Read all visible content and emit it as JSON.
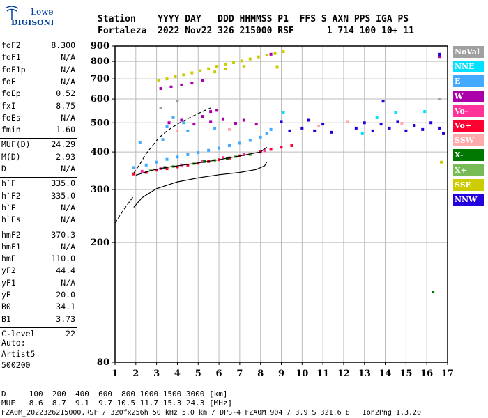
{
  "logo": {
    "line1": "Lowell",
    "line2": "DIGISONDE"
  },
  "header": {
    "row1": "Station    YYYY DAY   DDD HHMMSS P1  FFS S AXN PPS IGA PS",
    "row2": "Fortaleza  2022 Nov22 326 215000 RSF      1 714 100 10+ 11"
  },
  "params": [
    {
      "k": "foF2",
      "v": "8.300"
    },
    {
      "k": "foF1",
      "v": "N/A"
    },
    {
      "k": "foF1p",
      "v": "N/A"
    },
    {
      "k": "foE",
      "v": "N/A"
    },
    {
      "k": "foEp",
      "v": "0.52"
    },
    {
      "k": "fxI",
      "v": "8.75"
    },
    {
      "k": "foEs",
      "v": "N/A"
    },
    {
      "k": "fmin",
      "v": "1.60"
    },
    {
      "k": "MUF(D)",
      "v": "24.29"
    },
    {
      "k": "M(D)",
      "v": "2.93"
    },
    {
      "k": "D",
      "v": "N/A"
    },
    {
      "k": "h`F",
      "v": "335.0"
    },
    {
      "k": "h`F2",
      "v": "335.0"
    },
    {
      "k": "h`E",
      "v": "N/A"
    },
    {
      "k": "h`Es",
      "v": "N/A"
    },
    {
      "k": "hmF2",
      "v": "370.3"
    },
    {
      "k": "hmF1",
      "v": "N/A"
    },
    {
      "k": "hmE",
      "v": "110.0"
    },
    {
      "k": "yF2",
      "v": "44.4"
    },
    {
      "k": "yF1",
      "v": "N/A"
    },
    {
      "k": "yE",
      "v": "20.0"
    },
    {
      "k": "B0",
      "v": "34.1"
    },
    {
      "k": "B1",
      "v": "3.73"
    },
    {
      "k": "C-level",
      "v": "22"
    }
  ],
  "auto": {
    "l1": "Auto:",
    "l2": "Artist5",
    "l3": "500200"
  },
  "legend": [
    {
      "label": "NoVal",
      "color": "#a0a0a0"
    },
    {
      "label": "NNE",
      "color": "#00e0ff"
    },
    {
      "label": "E",
      "color": "#44aaff"
    },
    {
      "label": "W",
      "color": "#aa00aa"
    },
    {
      "label": "Vo-",
      "color": "#ff3399"
    },
    {
      "label": "Vo+",
      "color": "#ff0033"
    },
    {
      "label": "SSW",
      "color": "#ffaaaa"
    },
    {
      "label": "X-",
      "color": "#007700"
    },
    {
      "label": "X+",
      "color": "#77bb55"
    },
    {
      "label": "SSE",
      "color": "#cccc00"
    },
    {
      "label": "NNW",
      "color": "#2200dd"
    }
  ],
  "footer": {
    "l1": "D     100  200  400  600  800 1000 1500 3000 [km]",
    "l2": "MUF   8.6  8.7  9.1  9.7 10.5 11.7 15.3 24.3 [MHz]",
    "l3": "FZA0M_2022326215000.RSF / 320fx256h 50 kHz 5.0 km / DPS-4 FZA0M 904 / 3.9 S 321.6 E   Ion2Png 1.3.20"
  },
  "chart_data": {
    "type": "scatter",
    "title": "",
    "xlabel": "",
    "ylabel": "",
    "x_ticks": [
      1,
      2,
      3,
      4,
      5,
      6,
      7,
      8,
      9,
      10,
      11,
      12,
      13,
      14,
      15,
      16,
      17
    ],
    "y_ticks": [
      80,
      200,
      300,
      400,
      500,
      600,
      700,
      800,
      900
    ],
    "xlim": [
      1,
      17
    ],
    "ylim": [
      80,
      900
    ],
    "grid": true,
    "y_scale": "log",
    "legend_placement": "right",
    "series": [
      {
        "name": "E",
        "color": "#44aaff",
        "points": [
          [
            1.9,
            355
          ],
          [
            2.5,
            362
          ],
          [
            3,
            370
          ],
          [
            3.5,
            378
          ],
          [
            4,
            385
          ],
          [
            4.5,
            392
          ],
          [
            5,
            398
          ],
          [
            5.5,
            405
          ],
          [
            6,
            412
          ],
          [
            6.5,
            420
          ],
          [
            7,
            428
          ],
          [
            7.5,
            437
          ],
          [
            8,
            448
          ],
          [
            8.3,
            460
          ],
          [
            8.5,
            475
          ],
          [
            2.2,
            430
          ],
          [
            3.3,
            440
          ],
          [
            4.5,
            470
          ],
          [
            5.8,
            480
          ],
          [
            3.5,
            485
          ],
          [
            4.3,
            500
          ],
          [
            3.8,
            520
          ]
        ]
      },
      {
        "name": "Vo+",
        "color": "#ff0033",
        "points": [
          [
            1.9,
            338
          ],
          [
            2.5,
            342
          ],
          [
            3,
            348
          ],
          [
            3.5,
            352
          ],
          [
            4,
            357
          ],
          [
            4.5,
            362
          ],
          [
            5,
            367
          ],
          [
            5.5,
            372
          ],
          [
            6,
            377
          ],
          [
            6.5,
            382
          ],
          [
            7,
            388
          ],
          [
            7.5,
            394
          ],
          [
            8,
            400
          ],
          [
            8.5,
            408
          ],
          [
            9,
            415
          ],
          [
            9.5,
            420
          ]
        ]
      },
      {
        "name": "Vo-",
        "color": "#ff3399",
        "points": [
          [
            2.3,
            345
          ],
          [
            3.2,
            352
          ],
          [
            4.2,
            362
          ],
          [
            5.2,
            372
          ],
          [
            6.2,
            383
          ],
          [
            7.2,
            392
          ],
          [
            8.2,
            404
          ]
        ]
      },
      {
        "name": "X+",
        "color": "#77bb55",
        "points": [
          [
            2.7,
            348
          ],
          [
            3.8,
            358
          ],
          [
            4.8,
            366
          ],
          [
            5.8,
            375
          ],
          [
            6.8,
            386
          ],
          [
            7.5,
            392
          ]
        ]
      },
      {
        "name": "X-",
        "color": "#007700",
        "points": [
          [
            3.4,
            355
          ],
          [
            5.3,
            372
          ],
          [
            6.4,
            381
          ],
          [
            16.3,
            137
          ]
        ]
      },
      {
        "name": "W",
        "color": "#aa00aa",
        "points": [
          [
            3.6,
            500
          ],
          [
            4.2,
            510
          ],
          [
            4.8,
            495
          ],
          [
            5.2,
            525
          ],
          [
            5.6,
            505
          ],
          [
            6.2,
            515
          ],
          [
            6.8,
            498
          ],
          [
            7.2,
            510
          ],
          [
            7.8,
            495
          ],
          [
            3.2,
            650
          ],
          [
            3.7,
            658
          ],
          [
            4.2,
            668
          ],
          [
            4.7,
            678
          ],
          [
            5.2,
            690
          ],
          [
            5.6,
            545
          ],
          [
            5.9,
            550
          ],
          [
            8.5,
            845
          ],
          [
            16.6,
            830
          ]
        ]
      },
      {
        "name": "NNW",
        "color": "#2200dd",
        "points": [
          [
            9,
            505
          ],
          [
            9.4,
            470
          ],
          [
            10,
            480
          ],
          [
            10.3,
            510
          ],
          [
            10.6,
            470
          ],
          [
            11,
            495
          ],
          [
            11.4,
            465
          ],
          [
            12.6,
            480
          ],
          [
            13,
            500
          ],
          [
            13.4,
            470
          ],
          [
            13.8,
            495
          ],
          [
            14.2,
            480
          ],
          [
            14.6,
            505
          ],
          [
            15,
            470
          ],
          [
            15.4,
            490
          ],
          [
            15.8,
            475
          ],
          [
            16.2,
            500
          ],
          [
            16.6,
            480
          ],
          [
            16.8,
            460
          ],
          [
            13.9,
            590
          ],
          [
            16.6,
            845
          ]
        ]
      },
      {
        "name": "NNE",
        "color": "#00e0ff",
        "points": [
          [
            9.1,
            540
          ],
          [
            12.9,
            460
          ],
          [
            13.6,
            520
          ],
          [
            14.5,
            540
          ],
          [
            15.9,
            545
          ]
        ]
      },
      {
        "name": "SSE",
        "color": "#cccc00",
        "points": [
          [
            3.1,
            690
          ],
          [
            3.5,
            700
          ],
          [
            3.9,
            712
          ],
          [
            4.3,
            722
          ],
          [
            4.7,
            733
          ],
          [
            5.1,
            745
          ],
          [
            5.5,
            756
          ],
          [
            5.9,
            767
          ],
          [
            6.3,
            780
          ],
          [
            6.7,
            792
          ],
          [
            7.1,
            803
          ],
          [
            7.5,
            815
          ],
          [
            7.9,
            828
          ],
          [
            8.3,
            840
          ],
          [
            8.7,
            850
          ],
          [
            9.1,
            862
          ],
          [
            5.8,
            738
          ],
          [
            6.3,
            755
          ],
          [
            7.2,
            770
          ],
          [
            8.8,
            765
          ],
          [
            16.7,
            370
          ]
        ]
      },
      {
        "name": "SSW",
        "color": "#ffaaaa",
        "points": [
          [
            4,
            470
          ],
          [
            6.5,
            475
          ],
          [
            10.8,
            488
          ],
          [
            14.8,
            498
          ],
          [
            12.2,
            505
          ]
        ]
      },
      {
        "name": "NoVal",
        "color": "#a0a0a0",
        "points": [
          [
            3.2,
            560
          ],
          [
            4,
            590
          ],
          [
            16.6,
            600
          ]
        ]
      }
    ],
    "curves": [
      {
        "label": "profile-solid",
        "style": "solid",
        "points": [
          [
            1.9,
            262
          ],
          [
            2.3,
            282
          ],
          [
            3,
            302
          ],
          [
            4,
            318
          ],
          [
            5,
            328
          ],
          [
            6,
            336
          ],
          [
            7,
            342
          ],
          [
            7.8,
            350
          ],
          [
            8.2,
            360
          ],
          [
            8.3,
            370
          ]
        ]
      },
      {
        "label": "profile-dashed-lower",
        "style": "dashed",
        "points": [
          [
            1,
            232
          ],
          [
            1.3,
            250
          ],
          [
            1.6,
            268
          ],
          [
            1.9,
            285
          ]
        ]
      },
      {
        "label": "profile-dashed-upper",
        "style": "dashed",
        "points": [
          [
            1.9,
            340
          ],
          [
            2.2,
            365
          ],
          [
            2.5,
            395
          ],
          [
            2.8,
            420
          ],
          [
            3.1,
            445
          ],
          [
            3.5,
            470
          ],
          [
            4,
            495
          ],
          [
            4.6,
            520
          ],
          [
            5.2,
            545
          ],
          [
            5.6,
            560
          ]
        ]
      },
      {
        "label": "trace-f2",
        "style": "solid",
        "points": [
          [
            2,
            335
          ],
          [
            2.8,
            348
          ],
          [
            3.5,
            356
          ],
          [
            4.3,
            362
          ],
          [
            5,
            368
          ],
          [
            6,
            377
          ],
          [
            7,
            388
          ],
          [
            8,
            400
          ],
          [
            8.3,
            415
          ]
        ]
      }
    ]
  }
}
